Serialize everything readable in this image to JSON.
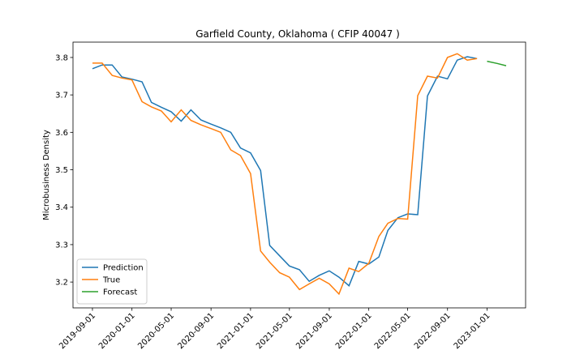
{
  "chart_data": {
    "type": "line",
    "title": "Garfield County, Oklahoma ( CFIP 40047 )",
    "y_label": "Microbusiness Density",
    "xlim": [
      "2019-07-03",
      "2023-04-30"
    ],
    "xticks": [
      "2019-09-01",
      "2020-01-01",
      "2020-05-01",
      "2020-09-01",
      "2021-01-01",
      "2021-05-01",
      "2021-09-01",
      "2022-01-01",
      "2022-05-01",
      "2022-09-01",
      "2023-01-01"
    ],
    "ylim": [
      3.131,
      3.841
    ],
    "yticks": [
      {
        "value": 3.2,
        "label": "3.2"
      },
      {
        "value": 3.3,
        "label": "3.3"
      },
      {
        "value": 3.4,
        "label": "3.4"
      },
      {
        "value": 3.5,
        "label": "3.5"
      },
      {
        "value": 3.6,
        "label": "3.6"
      },
      {
        "value": 3.7,
        "label": "3.7"
      },
      {
        "value": 3.8,
        "label": "3.8"
      }
    ],
    "legend": "lower left",
    "series": [
      {
        "name": "Prediction",
        "color": "#1f77b4",
        "x": [
          "2019-09-01",
          "2019-10-01",
          "2019-11-01",
          "2019-12-01",
          "2020-01-01",
          "2020-02-01",
          "2020-03-01",
          "2020-04-01",
          "2020-05-01",
          "2020-06-01",
          "2020-07-01",
          "2020-08-01",
          "2020-09-01",
          "2020-10-01",
          "2020-11-01",
          "2020-12-01",
          "2021-01-01",
          "2021-02-01",
          "2021-03-01",
          "2021-04-01",
          "2021-05-01",
          "2021-06-01",
          "2021-07-01",
          "2021-08-01",
          "2021-09-01",
          "2021-10-01",
          "2021-11-01",
          "2021-12-01",
          "2022-01-01",
          "2022-02-01",
          "2022-03-01",
          "2022-04-01",
          "2022-05-01",
          "2022-06-01",
          "2022-07-01",
          "2022-08-01",
          "2022-09-01",
          "2022-10-01",
          "2022-11-01",
          "2022-12-01"
        ],
        "values": [
          3.77,
          3.78,
          3.78,
          3.748,
          3.742,
          3.735,
          3.68,
          3.667,
          3.655,
          3.63,
          3.66,
          3.633,
          3.622,
          3.612,
          3.6,
          3.558,
          3.545,
          3.498,
          3.298,
          3.27,
          3.243,
          3.233,
          3.202,
          3.218,
          3.23,
          3.213,
          3.19,
          3.255,
          3.248,
          3.267,
          3.338,
          3.372,
          3.382,
          3.38,
          3.697,
          3.75,
          3.743,
          3.793,
          3.802,
          3.797
        ]
      },
      {
        "name": "True",
        "color": "#ff7f0e",
        "x": [
          "2019-09-01",
          "2019-10-01",
          "2019-11-01",
          "2019-12-01",
          "2020-01-01",
          "2020-02-01",
          "2020-03-01",
          "2020-04-01",
          "2020-05-01",
          "2020-06-01",
          "2020-07-01",
          "2020-08-01",
          "2020-09-01",
          "2020-10-01",
          "2020-11-01",
          "2020-12-01",
          "2021-01-01",
          "2021-02-01",
          "2021-03-01",
          "2021-04-01",
          "2021-05-01",
          "2021-06-01",
          "2021-07-01",
          "2021-08-01",
          "2021-09-01",
          "2021-10-01",
          "2021-11-01",
          "2021-12-01",
          "2022-01-01",
          "2022-02-01",
          "2022-03-01",
          "2022-04-01",
          "2022-05-01",
          "2022-06-01",
          "2022-07-01",
          "2022-08-01",
          "2022-09-01",
          "2022-10-01",
          "2022-11-01",
          "2022-12-01"
        ],
        "values": [
          3.785,
          3.785,
          3.752,
          3.745,
          3.74,
          3.682,
          3.668,
          3.657,
          3.628,
          3.66,
          3.632,
          3.62,
          3.61,
          3.6,
          3.553,
          3.538,
          3.49,
          3.283,
          3.253,
          3.225,
          3.213,
          3.18,
          3.195,
          3.21,
          3.195,
          3.168,
          3.237,
          3.228,
          3.25,
          3.322,
          3.357,
          3.37,
          3.368,
          3.698,
          3.75,
          3.745,
          3.8,
          3.81,
          3.793,
          3.797
        ]
      },
      {
        "name": "Forecast",
        "color": "#2ca02c",
        "x": [
          "2023-01-01",
          "2023-02-01",
          "2023-03-01"
        ],
        "values": [
          3.79,
          3.784,
          3.778
        ]
      }
    ]
  }
}
